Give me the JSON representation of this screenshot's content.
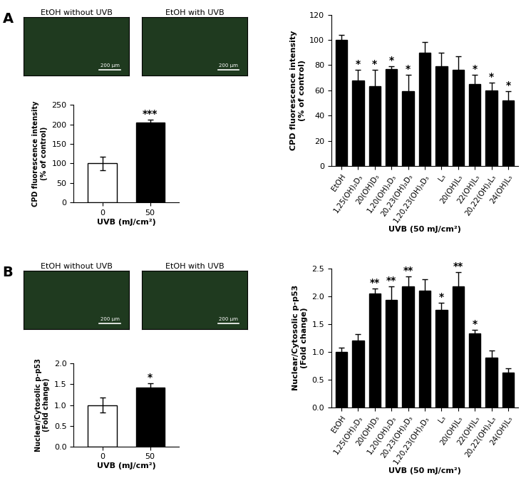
{
  "panel_labels": [
    "A",
    "B"
  ],
  "images": [
    {
      "title": "EtOH without UVB",
      "scale_bar": "200 μm"
    },
    {
      "title": "EtOH with UVB",
      "scale_bar": "200 μm"
    },
    {
      "title": "EtOH without UVB",
      "scale_bar": "200 μm"
    },
    {
      "title": "EtOH with UVB",
      "scale_bar": "200 μm"
    }
  ],
  "chart_data": [
    {
      "type": "bar",
      "categories": [
        "0",
        "50"
      ],
      "values": [
        100,
        205
      ],
      "errors": [
        17,
        8
      ],
      "significance": [
        null,
        "***"
      ],
      "colors": [
        "#ffffff",
        "#000000"
      ],
      "ylim": [
        0,
        250
      ],
      "yticks": [
        0,
        50,
        100,
        150,
        200,
        250
      ],
      "xlabel": "UVB (mJ/cm²)",
      "ylabel": "CPD fluorescence intensity\n(% of control)"
    },
    {
      "type": "bar",
      "categories": [
        "EtOH",
        "1,25(OH)₂D₃",
        "20(OH)D₃",
        "1,20(OH)₂D₃",
        "20,23(OH)₂D₃",
        "1,20,23(OH)₃D₃",
        "L₃",
        "20(OH)L₃",
        "22(OH)L₃",
        "20,22(OH)₂L₃",
        "24(OH)L₃"
      ],
      "values": [
        100,
        68,
        63,
        77,
        59,
        90,
        79,
        76,
        65,
        60,
        52
      ],
      "errors": [
        4,
        8,
        13,
        2,
        13,
        8,
        11,
        11,
        7,
        6,
        7
      ],
      "significance": [
        null,
        "*",
        "*",
        "*",
        "*",
        null,
        null,
        null,
        "*",
        "*",
        "*"
      ],
      "color": "#000000",
      "ylim": [
        0,
        120
      ],
      "yticks": [
        0,
        20,
        40,
        60,
        80,
        100,
        120
      ],
      "xlabel": "UVB (50 mJ/cm²)",
      "ylabel": "CPD fluorescence intensity\n(% of control)"
    },
    {
      "type": "bar",
      "categories": [
        "0",
        "50"
      ],
      "values": [
        1.0,
        1.43
      ],
      "errors": [
        0.18,
        0.1
      ],
      "significance": [
        null,
        "*"
      ],
      "colors": [
        "#ffffff",
        "#000000"
      ],
      "ylim": [
        0,
        2.0
      ],
      "yticks": [
        {
          "value": 0,
          "label": "0.0"
        },
        0.5,
        {
          "value": 1,
          "label": "1.0"
        },
        1.5,
        {
          "value": 2,
          "label": "2.0"
        }
      ],
      "xlabel": "UVB (mJ/cm²)",
      "ylabel": "Nuclear/Cytosolic p-p53\n(Fold change)"
    },
    {
      "type": "bar",
      "categories": [
        "EtOH",
        "1,25(OH)₂D₃",
        "20(OH)D₃",
        "1,20(OH)₂D₃",
        "20,23(OH)₂D₃",
        "1,20,23(OH)₃D₃",
        "L₃",
        "20(OH)L₃",
        "22(OH)L₃",
        "20,22(OH)₂L₃",
        "24(OH)L₃"
      ],
      "values": [
        1.0,
        1.2,
        2.05,
        1.93,
        2.18,
        2.1,
        1.75,
        2.18,
        1.33,
        0.9,
        0.63
      ],
      "errors": [
        0.07,
        0.12,
        0.09,
        0.25,
        0.17,
        0.2,
        0.13,
        0.25,
        0.07,
        0.12,
        0.08
      ],
      "significance": [
        null,
        null,
        "**",
        "**",
        "**",
        null,
        "*",
        "**",
        "*",
        null,
        null
      ],
      "color": "#000000",
      "ylim": [
        0,
        2.5
      ],
      "yticks": [
        {
          "value": 0,
          "label": "0.0"
        },
        0.5,
        {
          "value": 1,
          "label": "1.0"
        },
        1.5,
        {
          "value": 2,
          "label": "2.0"
        },
        2.5
      ],
      "xlabel": "UVB (50 mJ/cm²)",
      "ylabel": "Nuclear/Cytosolic p-p53\n(Fold change)"
    }
  ]
}
